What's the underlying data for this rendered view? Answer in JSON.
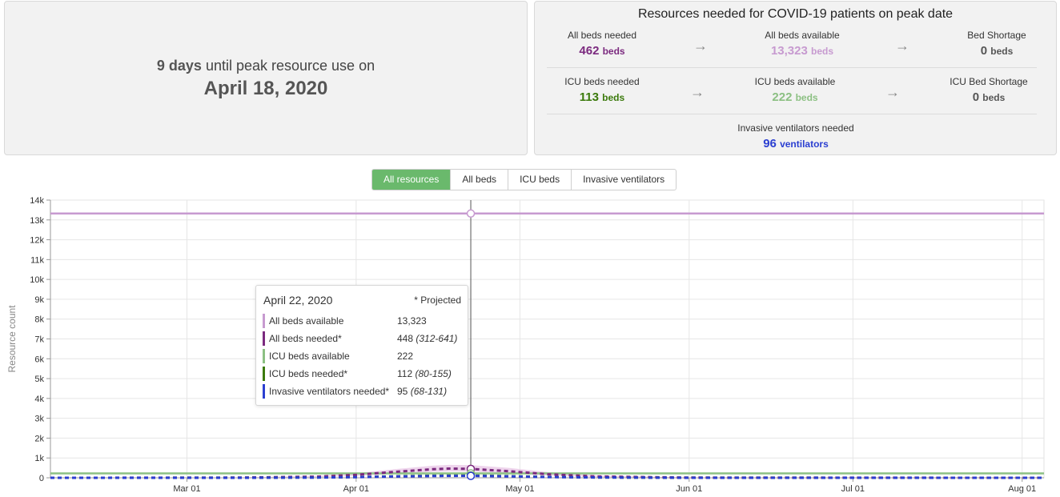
{
  "peak": {
    "days": "9 days",
    "until_text": "until peak resource use on",
    "date": "April 18, 2020"
  },
  "resources": {
    "title": "Resources needed for COVID-19 patients on peak date",
    "all_beds_needed": {
      "label": "All beds needed",
      "value": "462",
      "unit": "beds",
      "color": "#7b2a7f"
    },
    "all_beds_available": {
      "label": "All beds available",
      "value": "13,323",
      "unit": "beds",
      "color": "#c79ad0"
    },
    "bed_shortage": {
      "label": "Bed Shortage",
      "value": "0",
      "unit": "beds",
      "color": "#555555"
    },
    "icu_beds_needed": {
      "label": "ICU beds needed",
      "value": "113",
      "unit": "beds",
      "color": "#3b7a0c"
    },
    "icu_beds_available": {
      "label": "ICU beds available",
      "value": "222",
      "unit": "beds",
      "color": "#8cc083"
    },
    "icu_bed_shortage": {
      "label": "ICU Bed Shortage",
      "value": "0",
      "unit": "beds",
      "color": "#555555"
    },
    "ventilators_needed": {
      "label": "Invasive ventilators needed",
      "value": "96",
      "unit": "ventilators",
      "color": "#2b3fd1"
    },
    "arrow_icon": "→"
  },
  "tabs": [
    {
      "label": "All resources",
      "active": true
    },
    {
      "label": "All beds",
      "active": false
    },
    {
      "label": "ICU beds",
      "active": false
    },
    {
      "label": "Invasive ventilators",
      "active": false
    }
  ],
  "tooltip": {
    "date": "April 22, 2020",
    "projected": "* Projected",
    "rows": [
      {
        "name": "All beds available",
        "value": "13,323",
        "range": "",
        "color": "#c79ad0"
      },
      {
        "name": "All beds needed*",
        "value": "448",
        "range": "(312-641)",
        "color": "#7b2a7f"
      },
      {
        "name": "ICU beds available",
        "value": "222",
        "range": "",
        "color": "#8cc083"
      },
      {
        "name": "ICU beds needed*",
        "value": "112",
        "range": "(80-155)",
        "color": "#3b7a0c"
      },
      {
        "name": "Invasive ventilators needed*",
        "value": "95",
        "range": "(68-131)",
        "color": "#2b3fd1"
      }
    ]
  },
  "chart_data": {
    "type": "line",
    "ylabel": "Resource count",
    "ylim": [
      0,
      14000
    ],
    "yticks": [
      0,
      1000,
      2000,
      3000,
      4000,
      5000,
      6000,
      7000,
      8000,
      9000,
      10000,
      11000,
      12000,
      13000,
      14000
    ],
    "ytick_labels": [
      "0",
      "1k",
      "2k",
      "3k",
      "4k",
      "5k",
      "6k",
      "7k",
      "8k",
      "9k",
      "10k",
      "11k",
      "12k",
      "13k",
      "14k"
    ],
    "x_range": [
      "2020-02-05",
      "2020-08-05"
    ],
    "xticks": [
      {
        "date": "2020-03-01",
        "label": "Mar 01"
      },
      {
        "date": "2020-04-01",
        "label": "Apr 01"
      },
      {
        "date": "2020-05-01",
        "label": "May 01"
      },
      {
        "date": "2020-06-01",
        "label": "Jun 01"
      },
      {
        "date": "2020-07-01",
        "label": "Jul 01"
      },
      {
        "date": "2020-08-01",
        "label": "Aug 01"
      }
    ],
    "hover_date": "2020-04-22",
    "grid": true,
    "series": [
      {
        "name": "All beds available",
        "style": "solid",
        "color": "#c79ad0",
        "points": [
          [
            "2020-02-05",
            13323
          ],
          [
            "2020-08-05",
            13323
          ]
        ]
      },
      {
        "name": "ICU beds available",
        "style": "solid",
        "color": "#8cc083",
        "points": [
          [
            "2020-02-05",
            222
          ],
          [
            "2020-08-05",
            222
          ]
        ]
      },
      {
        "name": "All beds needed*",
        "style": "dashed",
        "color": "#7b2a7f",
        "band_color": "#e2b7e0",
        "points": [
          [
            "2020-02-05",
            0
          ],
          [
            "2020-03-10",
            10
          ],
          [
            "2020-03-25",
            60
          ],
          [
            "2020-04-01",
            150
          ],
          [
            "2020-04-08",
            300
          ],
          [
            "2020-04-15",
            430
          ],
          [
            "2020-04-18",
            462
          ],
          [
            "2020-04-22",
            448
          ],
          [
            "2020-04-29",
            330
          ],
          [
            "2020-05-06",
            180
          ],
          [
            "2020-05-15",
            70
          ],
          [
            "2020-06-01",
            10
          ],
          [
            "2020-08-05",
            0
          ]
        ],
        "upper": [
          [
            "2020-02-05",
            0
          ],
          [
            "2020-03-10",
            20
          ],
          [
            "2020-03-25",
            100
          ],
          [
            "2020-04-01",
            230
          ],
          [
            "2020-04-08",
            430
          ],
          [
            "2020-04-15",
            610
          ],
          [
            "2020-04-18",
            650
          ],
          [
            "2020-04-22",
            641
          ],
          [
            "2020-04-29",
            500
          ],
          [
            "2020-05-06",
            290
          ],
          [
            "2020-05-15",
            120
          ],
          [
            "2020-06-01",
            20
          ],
          [
            "2020-08-05",
            0
          ]
        ],
        "lower": [
          [
            "2020-02-05",
            0
          ],
          [
            "2020-03-10",
            5
          ],
          [
            "2020-03-25",
            30
          ],
          [
            "2020-04-01",
            90
          ],
          [
            "2020-04-08",
            200
          ],
          [
            "2020-04-15",
            300
          ],
          [
            "2020-04-18",
            320
          ],
          [
            "2020-04-22",
            312
          ],
          [
            "2020-04-29",
            220
          ],
          [
            "2020-05-06",
            110
          ],
          [
            "2020-05-15",
            40
          ],
          [
            "2020-06-01",
            5
          ],
          [
            "2020-08-05",
            0
          ]
        ]
      },
      {
        "name": "ICU beds needed*",
        "style": "dashed",
        "color": "#3b7a0c",
        "points": [
          [
            "2020-02-05",
            0
          ],
          [
            "2020-03-10",
            3
          ],
          [
            "2020-03-25",
            15
          ],
          [
            "2020-04-01",
            37
          ],
          [
            "2020-04-08",
            75
          ],
          [
            "2020-04-15",
            106
          ],
          [
            "2020-04-18",
            113
          ],
          [
            "2020-04-22",
            112
          ],
          [
            "2020-04-29",
            85
          ],
          [
            "2020-05-06",
            45
          ],
          [
            "2020-05-15",
            18
          ],
          [
            "2020-06-01",
            3
          ],
          [
            "2020-08-05",
            0
          ]
        ]
      },
      {
        "name": "Invasive ventilators needed*",
        "style": "dashed",
        "color": "#2b3fd1",
        "points": [
          [
            "2020-02-05",
            0
          ],
          [
            "2020-03-10",
            2
          ],
          [
            "2020-03-25",
            12
          ],
          [
            "2020-04-01",
            31
          ],
          [
            "2020-04-08",
            64
          ],
          [
            "2020-04-15",
            90
          ],
          [
            "2020-04-18",
            96
          ],
          [
            "2020-04-22",
            95
          ],
          [
            "2020-04-29",
            72
          ],
          [
            "2020-05-06",
            38
          ],
          [
            "2020-05-15",
            15
          ],
          [
            "2020-06-01",
            2
          ],
          [
            "2020-08-05",
            0
          ]
        ]
      }
    ]
  }
}
